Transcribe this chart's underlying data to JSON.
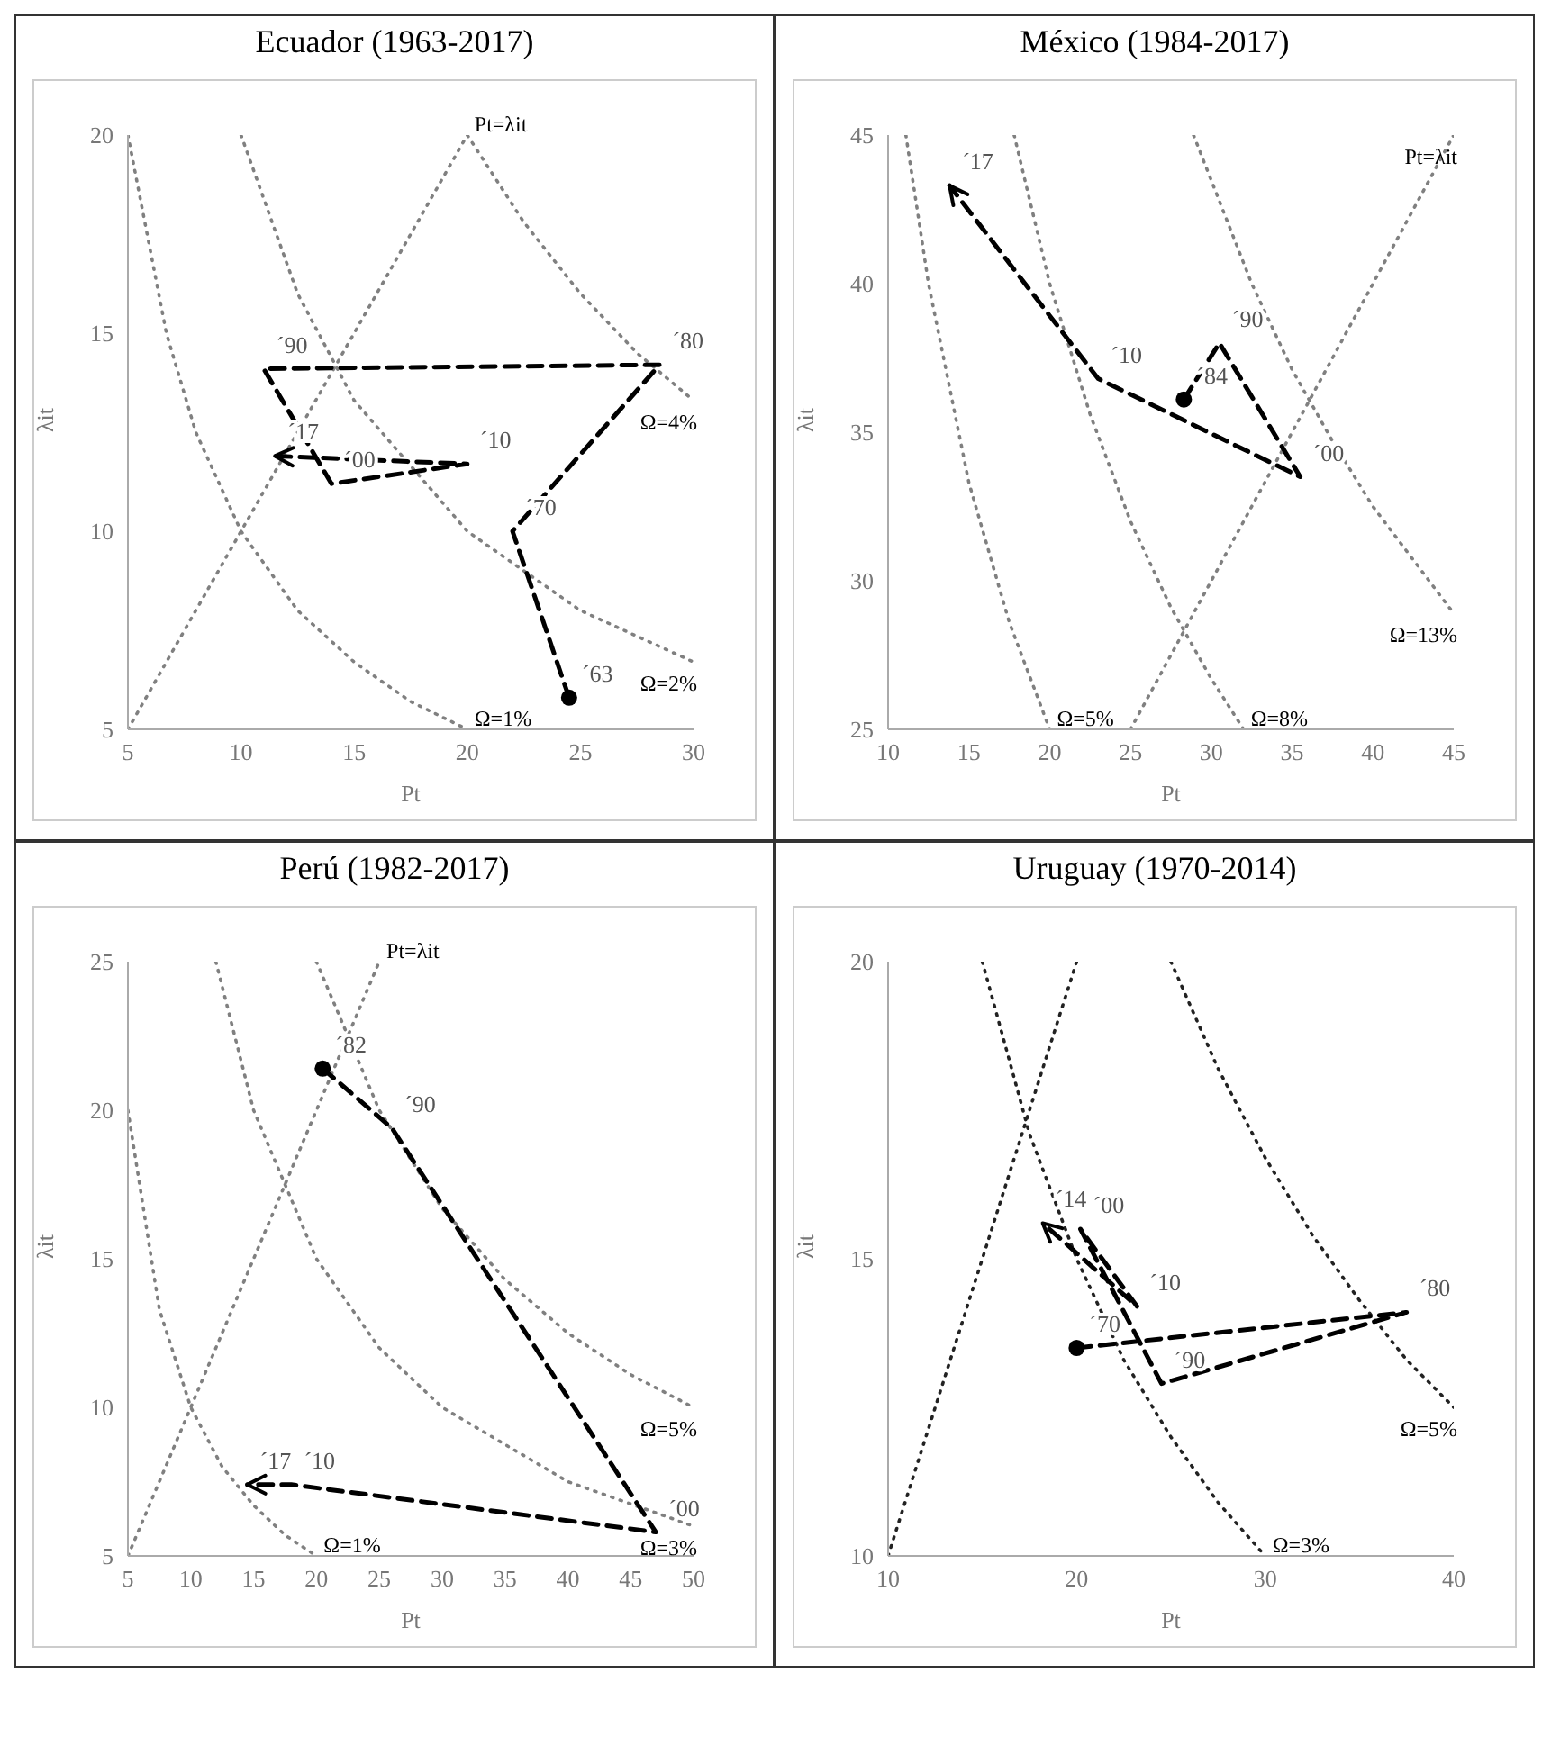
{
  "chart_data": [
    {
      "type": "line",
      "title": "Ecuador (1963-2017)",
      "xlabel": "Pt",
      "ylabel": "λit",
      "xlim": [
        5,
        30
      ],
      "ylim": [
        5,
        20
      ],
      "xticks": [
        5,
        10,
        15,
        20,
        25,
        30
      ],
      "yticks": [
        5,
        10,
        15,
        20
      ],
      "series": [
        {
          "name": "Ω=1%",
          "color": "#808080",
          "line_style": "dotted",
          "x": [
            5,
            6.7,
            8,
            10,
            12.5,
            15,
            17.5,
            20
          ],
          "values": [
            20,
            15,
            12.5,
            10,
            8,
            6.7,
            5.7,
            5
          ]
        },
        {
          "name": "Ω=2%",
          "color": "#808080",
          "line_style": "dotted",
          "x": [
            10,
            12.5,
            15,
            20,
            25,
            30
          ],
          "values": [
            20,
            16,
            13.3,
            10,
            8,
            6.7
          ]
        },
        {
          "name": "Ω=4%",
          "color": "#808080",
          "line_style": "dotted",
          "x": [
            20,
            22.5,
            25,
            27.5,
            30
          ],
          "values": [
            20,
            17.8,
            16,
            14.5,
            13.3
          ]
        },
        {
          "name": "Pt=λit",
          "color": "#808080",
          "line_style": "dotted",
          "x": [
            5,
            20
          ],
          "values": [
            5,
            20
          ]
        },
        {
          "color": "#000000",
          "line_style": "dashed",
          "x": [
            24.5,
            22,
            28.5,
            11,
            14,
            20,
            11.5
          ],
          "values": [
            5.8,
            10,
            14.2,
            14.1,
            11.2,
            11.7,
            11.9
          ]
        },
        {
          "type": "scatter",
          "color": "#000000",
          "marker": "circle",
          "x": [
            24.5
          ],
          "values": [
            5.8
          ]
        }
      ],
      "annotations": [
        {
          "text": "´63",
          "x": 24.5,
          "y": 5.8
        },
        {
          "text": "´70",
          "x": 22,
          "y": 10
        },
        {
          "text": "´80",
          "x": 28.5,
          "y": 14.2
        },
        {
          "text": "´90",
          "x": 11,
          "y": 14.1
        },
        {
          "text": "´00",
          "x": 14,
          "y": 11.2
        },
        {
          "text": "´10",
          "x": 20,
          "y": 11.7
        },
        {
          "text": "´17",
          "x": 11.5,
          "y": 11.9
        }
      ]
    },
    {
      "type": "line",
      "title": "México (1984-2017)",
      "xlabel": "Pt",
      "ylabel": "λit",
      "xlim": [
        10,
        45
      ],
      "ylim": [
        25,
        45
      ],
      "xticks": [
        10,
        15,
        20,
        25,
        30,
        35,
        40,
        45
      ],
      "yticks": [
        25,
        30,
        35,
        40,
        45
      ],
      "series": [
        {
          "name": "Ω=5%",
          "color": "#808080",
          "line_style": "dotted",
          "x": [
            11.1,
            12.5,
            15,
            17.5,
            20
          ],
          "values": [
            45,
            40,
            33.3,
            28.6,
            25
          ]
        },
        {
          "name": "Ω=8%",
          "color": "#808080",
          "line_style": "dotted",
          "x": [
            17.8,
            20,
            22.5,
            25,
            27.5,
            30,
            32
          ],
          "values": [
            45,
            40,
            35.6,
            32,
            29.1,
            26.7,
            25
          ]
        },
        {
          "name": "Ω=13%",
          "color": "#808080",
          "line_style": "dotted",
          "x": [
            28.9,
            32.5,
            35,
            37.5,
            40,
            45
          ],
          "values": [
            45,
            40,
            37.1,
            34.7,
            32.5,
            28.9
          ]
        },
        {
          "name": "Pt=λit",
          "color": "#808080",
          "line_style": "dotted",
          "x": [
            25,
            45
          ],
          "values": [
            25,
            45
          ]
        },
        {
          "color": "#000000",
          "line_style": "dashed",
          "x": [
            28.3,
            30.5,
            35.5,
            23,
            13.8
          ],
          "values": [
            36.1,
            38,
            33.5,
            36.8,
            43.3
          ]
        },
        {
          "type": "scatter",
          "color": "#000000",
          "marker": "circle",
          "x": [
            28.3
          ],
          "values": [
            36.1
          ]
        }
      ],
      "annotations": [
        {
          "text": "´84",
          "x": 28.3,
          "y": 36.1
        },
        {
          "text": "´90",
          "x": 30.5,
          "y": 38
        },
        {
          "text": "´00",
          "x": 35.5,
          "y": 33.5
        },
        {
          "text": "´10",
          "x": 23,
          "y": 36.8
        },
        {
          "text": "´17",
          "x": 13.8,
          "y": 43.3
        }
      ]
    },
    {
      "type": "line",
      "title": "Perú (1982-2017)",
      "xlabel": "Pt",
      "ylabel": "λit",
      "xlim": [
        5,
        50
      ],
      "ylim": [
        5,
        25
      ],
      "xticks": [
        5,
        10,
        15,
        20,
        25,
        30,
        35,
        40,
        45,
        50
      ],
      "yticks": [
        5,
        10,
        15,
        20,
        25
      ],
      "series": [
        {
          "name": "Ω=1%",
          "color": "#808080",
          "line_style": "dotted",
          "x": [
            5,
            7.5,
            10,
            12.5,
            15,
            17.5,
            20
          ],
          "values": [
            20,
            13.3,
            10,
            8,
            6.7,
            5.7,
            5
          ]
        },
        {
          "name": "Ω=3%",
          "color": "#808080",
          "line_style": "dotted",
          "x": [
            12,
            15,
            20,
            25,
            30,
            40,
            50
          ],
          "values": [
            25,
            20,
            15,
            12,
            10,
            7.5,
            6
          ]
        },
        {
          "name": "Ω=5%",
          "color": "#808080",
          "line_style": "dotted",
          "x": [
            20,
            25,
            30,
            35,
            40,
            45,
            50
          ],
          "values": [
            25,
            20,
            16.7,
            14.3,
            12.5,
            11.1,
            10
          ]
        },
        {
          "name": "Pt=λit",
          "color": "#808080",
          "line_style": "dotted",
          "x": [
            5,
            25
          ],
          "values": [
            5,
            25
          ]
        },
        {
          "color": "#000000",
          "line_style": "dashed",
          "x": [
            20.5,
            26,
            47,
            18,
            14.5
          ],
          "values": [
            21.4,
            19.4,
            5.8,
            7.4,
            7.4
          ]
        },
        {
          "type": "scatter",
          "color": "#000000",
          "marker": "circle",
          "x": [
            20.5
          ],
          "values": [
            21.4
          ]
        }
      ],
      "annotations": [
        {
          "text": "´82",
          "x": 20.5,
          "y": 21.4
        },
        {
          "text": "´90",
          "x": 26,
          "y": 19.4
        },
        {
          "text": "´00",
          "x": 47,
          "y": 5.8
        },
        {
          "text": "´10",
          "x": 18,
          "y": 7.4
        },
        {
          "text": "´17",
          "x": 14.5,
          "y": 7.4
        }
      ]
    },
    {
      "type": "line",
      "title": "Uruguay (1970-2014)",
      "xlabel": "Pt",
      "ylabel": "λit",
      "xlim": [
        10,
        40
      ],
      "ylim": [
        10,
        20
      ],
      "xticks": [
        10,
        20,
        30,
        40
      ],
      "yticks": [
        10,
        15,
        20
      ],
      "series": [
        {
          "name": "Ω=3%",
          "color": "#222222",
          "line_style": "dotted",
          "x": [
            15,
            17.5,
            20,
            22.5,
            25,
            27.5,
            30
          ],
          "values": [
            20,
            17.1,
            15,
            13.3,
            12,
            10.9,
            10
          ]
        },
        {
          "name": "Ω=5%",
          "color": "#222222",
          "line_style": "dotted",
          "x": [
            25,
            27.5,
            30,
            32.5,
            35,
            37.5,
            40
          ],
          "values": [
            20,
            18.2,
            16.7,
            15.4,
            14.3,
            13.3,
            12.5
          ]
        },
        {
          "color": "#222222",
          "line_style": "dotted",
          "x": [
            10,
            20
          ],
          "values": [
            10,
            20
          ]
        },
        {
          "color": "#000000",
          "line_style": "dashed",
          "x": [
            20,
            37.5,
            24.5,
            20.2,
            23.2,
            18.2
          ],
          "values": [
            13.5,
            14.1,
            12.9,
            15.5,
            14.2,
            15.6
          ]
        },
        {
          "type": "scatter",
          "color": "#000000",
          "marker": "circle",
          "x": [
            20
          ],
          "values": [
            13.5
          ]
        }
      ],
      "annotations": [
        {
          "text": "´70",
          "x": 20,
          "y": 13.5
        },
        {
          "text": "´80",
          "x": 37.5,
          "y": 14.1
        },
        {
          "text": "´90",
          "x": 24.5,
          "y": 12.9
        },
        {
          "text": "´00",
          "x": 20.2,
          "y": 15.5
        },
        {
          "text": "´10",
          "x": 23.2,
          "y": 14.2
        },
        {
          "text": "´14",
          "x": 18.2,
          "y": 15.6
        }
      ]
    }
  ]
}
